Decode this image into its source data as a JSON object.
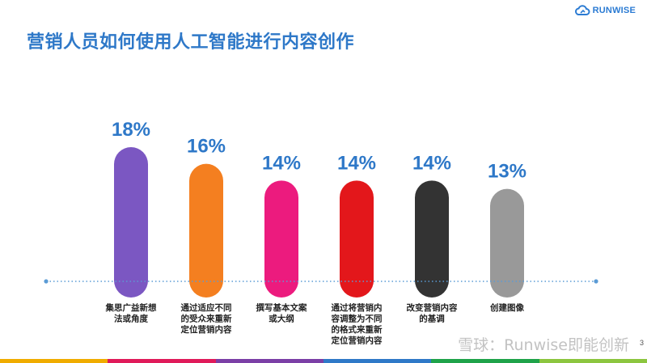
{
  "header": {
    "title": "营销人员如何使用人工智能进行内容创作",
    "logo_text": "RUNWISE"
  },
  "watermark": {
    "text": "雪球：Runwise即能创新"
  },
  "page_number": "3",
  "colors": {
    "title": "#2e78c8",
    "value_label": "#2e78c8",
    "baseline": "#5b9bd5",
    "bars": [
      "#7b57c2",
      "#f47f20",
      "#ec1b7e",
      "#e3171b",
      "#333333",
      "#999999"
    ],
    "band": [
      "#f0ac00",
      "#e01a5a",
      "#7b3fa6",
      "#2f79c8",
      "#1fa34a",
      "#8cc63f"
    ]
  },
  "chart_data": {
    "type": "bar",
    "title": "",
    "xlabel": "",
    "ylabel": "",
    "unit": "%",
    "ylim": [
      0,
      18
    ],
    "categories": [
      [
        "集思广益新想",
        "法或角度"
      ],
      [
        "通过适应不同",
        "的受众来重新",
        "定位营销内容"
      ],
      [
        "撰写基本文案",
        "或大纲"
      ],
      [
        "通过将营销内",
        "容调整为不同",
        "的格式来重新",
        "定位营销内容"
      ],
      [
        "改变营销内容",
        "的基调"
      ],
      [
        "创建图像"
      ]
    ],
    "values": [
      18,
      16,
      14,
      14,
      14,
      13
    ],
    "value_labels": [
      "18%",
      "16%",
      "14%",
      "14%",
      "14%",
      "13%"
    ]
  }
}
